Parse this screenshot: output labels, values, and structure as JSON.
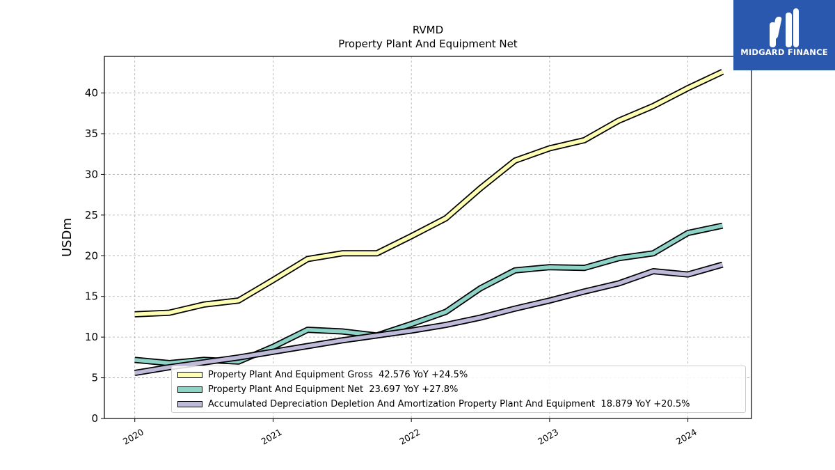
{
  "chart_data": {
    "type": "line",
    "title": "RVMD",
    "subtitle": "Property Plant And Equipment Net",
    "ylabel": "USDm",
    "xlabel": "",
    "ylim": [
      0,
      44.5
    ],
    "xlim": [
      2019.78,
      2024.46
    ],
    "yticks": [
      0,
      5,
      10,
      15,
      20,
      25,
      30,
      35,
      40
    ],
    "xticks": [
      {
        "value": 2020,
        "label": "2020"
      },
      {
        "value": 2021,
        "label": "2021"
      },
      {
        "value": 2022,
        "label": "2022"
      },
      {
        "value": 2023,
        "label": "2023"
      },
      {
        "value": 2024,
        "label": "2024"
      }
    ],
    "grid": true,
    "legend_position": "bottom-right",
    "x": [
      2020.0,
      2020.25,
      2020.5,
      2020.75,
      2021.0,
      2021.25,
      2021.5,
      2021.75,
      2022.0,
      2022.25,
      2022.5,
      2022.75,
      2023.0,
      2023.25,
      2023.5,
      2023.75,
      2024.0,
      2024.25
    ],
    "series": [
      {
        "name": "Property Plant And Equipment Gross",
        "legend_label": "Property Plant And Equipment Gross  42.576 YoY +24.5%",
        "color": "#ffffb3",
        "values": [
          12.8,
          13.0,
          14.0,
          14.5,
          17.0,
          19.6,
          20.3,
          20.3,
          22.4,
          24.6,
          28.3,
          31.7,
          33.2,
          34.2,
          36.6,
          38.4,
          40.6,
          42.6
        ]
      },
      {
        "name": "Property Plant And Equipment Net",
        "legend_label": "Property Plant And Equipment Net  23.697 YoY +27.8%",
        "color": "#8dd3c7",
        "values": [
          7.2,
          6.8,
          7.2,
          7.0,
          8.8,
          10.9,
          10.7,
          10.2,
          11.6,
          13.1,
          16.0,
          18.2,
          18.6,
          18.5,
          19.7,
          20.3,
          22.8,
          23.7
        ]
      },
      {
        "name": "Accumulated Depreciation Depletion And Amortization Property Plant And Equipment",
        "legend_label": "Accumulated Depreciation Depletion And Amortization Property Plant And Equipment  18.879 YoY +20.5%",
        "color": "#bebada",
        "values": [
          5.6,
          6.3,
          6.9,
          7.5,
          8.2,
          8.9,
          9.6,
          10.2,
          10.8,
          11.5,
          12.4,
          13.5,
          14.5,
          15.6,
          16.6,
          18.1,
          17.7,
          18.9
        ]
      }
    ]
  },
  "logo": {
    "text": "MIDGARD FINANCE"
  }
}
